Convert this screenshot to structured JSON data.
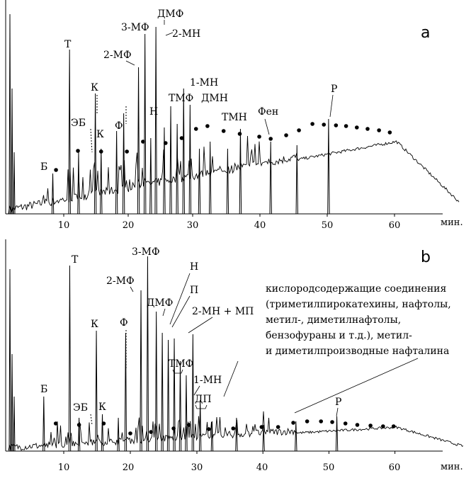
{
  "chart_data": [
    {
      "type": "line",
      "panel": "a",
      "x_unit": "мин.",
      "xlim": [
        0,
        70
      ],
      "x_ticks": [
        10,
        20,
        30,
        40,
        50,
        60
      ],
      "labels": [
        {
          "text": "Б",
          "x": 8.3
        },
        {
          "text": "Т",
          "x": 10.9
        },
        {
          "text": "ЭБ",
          "x": 12.8
        },
        {
          "text": "К",
          "x": 14.9
        },
        {
          "text": "К",
          "x": 15.8
        },
        {
          "text": "Ф",
          "x": 19.3
        },
        {
          "text": "2-МФ",
          "x": 21.6
        },
        {
          "text": "3-МФ",
          "x": 22.6
        },
        {
          "text": "Н",
          "x": 25.6
        },
        {
          "text": "ДМФ",
          "x": 24.3
        },
        {
          "text": "2-МН",
          "x": 25.1
        },
        {
          "text": "ТМФ",
          "x": 27.3
        },
        {
          "text": "1-МН",
          "x": 28.7
        },
        {
          "text": "ДМН",
          "x": 29.9
        },
        {
          "text": "ТМН",
          "x": 35.5
        },
        {
          "text": "Фен",
          "x": 39.9
        },
        {
          "text": "Р",
          "x": 50.2
        }
      ]
    },
    {
      "type": "line",
      "panel": "b",
      "x_unit": "мин.",
      "xlim": [
        0,
        70
      ],
      "x_ticks": [
        10,
        20,
        30,
        40,
        50,
        60
      ],
      "labels": [
        {
          "text": "Б",
          "x": 8.3
        },
        {
          "text": "Т",
          "x": 10.9
        },
        {
          "text": "ЭБ",
          "x": 12.8
        },
        {
          "text": "К",
          "x": 14.9
        },
        {
          "text": "К",
          "x": 15.8
        },
        {
          "text": "Ф",
          "x": 19.3
        },
        {
          "text": "2-МФ",
          "x": 21.6
        },
        {
          "text": "3-МФ",
          "x": 22.6
        },
        {
          "text": "ДМФ",
          "x": 24.3
        },
        {
          "text": "Н",
          "x": 25.6
        },
        {
          "text": "П",
          "x": 26.3
        },
        {
          "text": "2-МН + МП",
          "x": 27.3
        },
        {
          "text": "ТМФ",
          "x": 27.3
        },
        {
          "text": "1-МН",
          "x": 28.7
        },
        {
          "text": "ДП",
          "x": 30.5
        },
        {
          "text": "Р",
          "x": 50.2
        }
      ],
      "annotation": "кислородсодержащие соединения (триметилпирокатехины, нафтолы, метил-, диметилнафтолы, бензофураны и т.д.), метил- и диметилпроизводные нафталина"
    }
  ],
  "panels": {
    "a": {
      "letter": "a",
      "unit": "мин.",
      "ticks": [
        "10",
        "20",
        "30",
        "40",
        "50",
        "60"
      ],
      "labels": {
        "B": "Б",
        "T": "Т",
        "EB": "ЭБ",
        "K1": "К",
        "K2": "К",
        "F": "Ф",
        "MF2": "2-МФ",
        "MF3": "3-МФ",
        "N": "Н",
        "DMF": "ДМФ",
        "MN2": "2-МН",
        "TMF": "ТМФ",
        "MN1": "1-МН",
        "DMN": "ДМН",
        "TMN": "ТМН",
        "Fen": "Фен",
        "R": "Р"
      }
    },
    "b": {
      "letter": "b",
      "unit": "мин.",
      "ticks": [
        "10",
        "20",
        "30",
        "40",
        "50",
        "60"
      ],
      "labels": {
        "B": "Б",
        "T": "Т",
        "EB": "ЭБ",
        "K1": "К",
        "K2": "К",
        "F": "Ф",
        "MF2": "2-МФ",
        "MF3": "3-МФ",
        "DMF": "ДМФ",
        "N": "Н",
        "P": "П",
        "MNMP": "2-МН + МП",
        "TMF": "ТМФ",
        "MN1": "1-МН",
        "DP": "ДП",
        "R": "Р"
      },
      "note": [
        "кислородсодержащие соединения",
        "(триметилпирокатехины, нафтолы,",
        "метил-, диметилнафтолы,",
        "бензофураны и т.д.), метил-",
        "и диметилпроизводные нафталина"
      ]
    }
  }
}
